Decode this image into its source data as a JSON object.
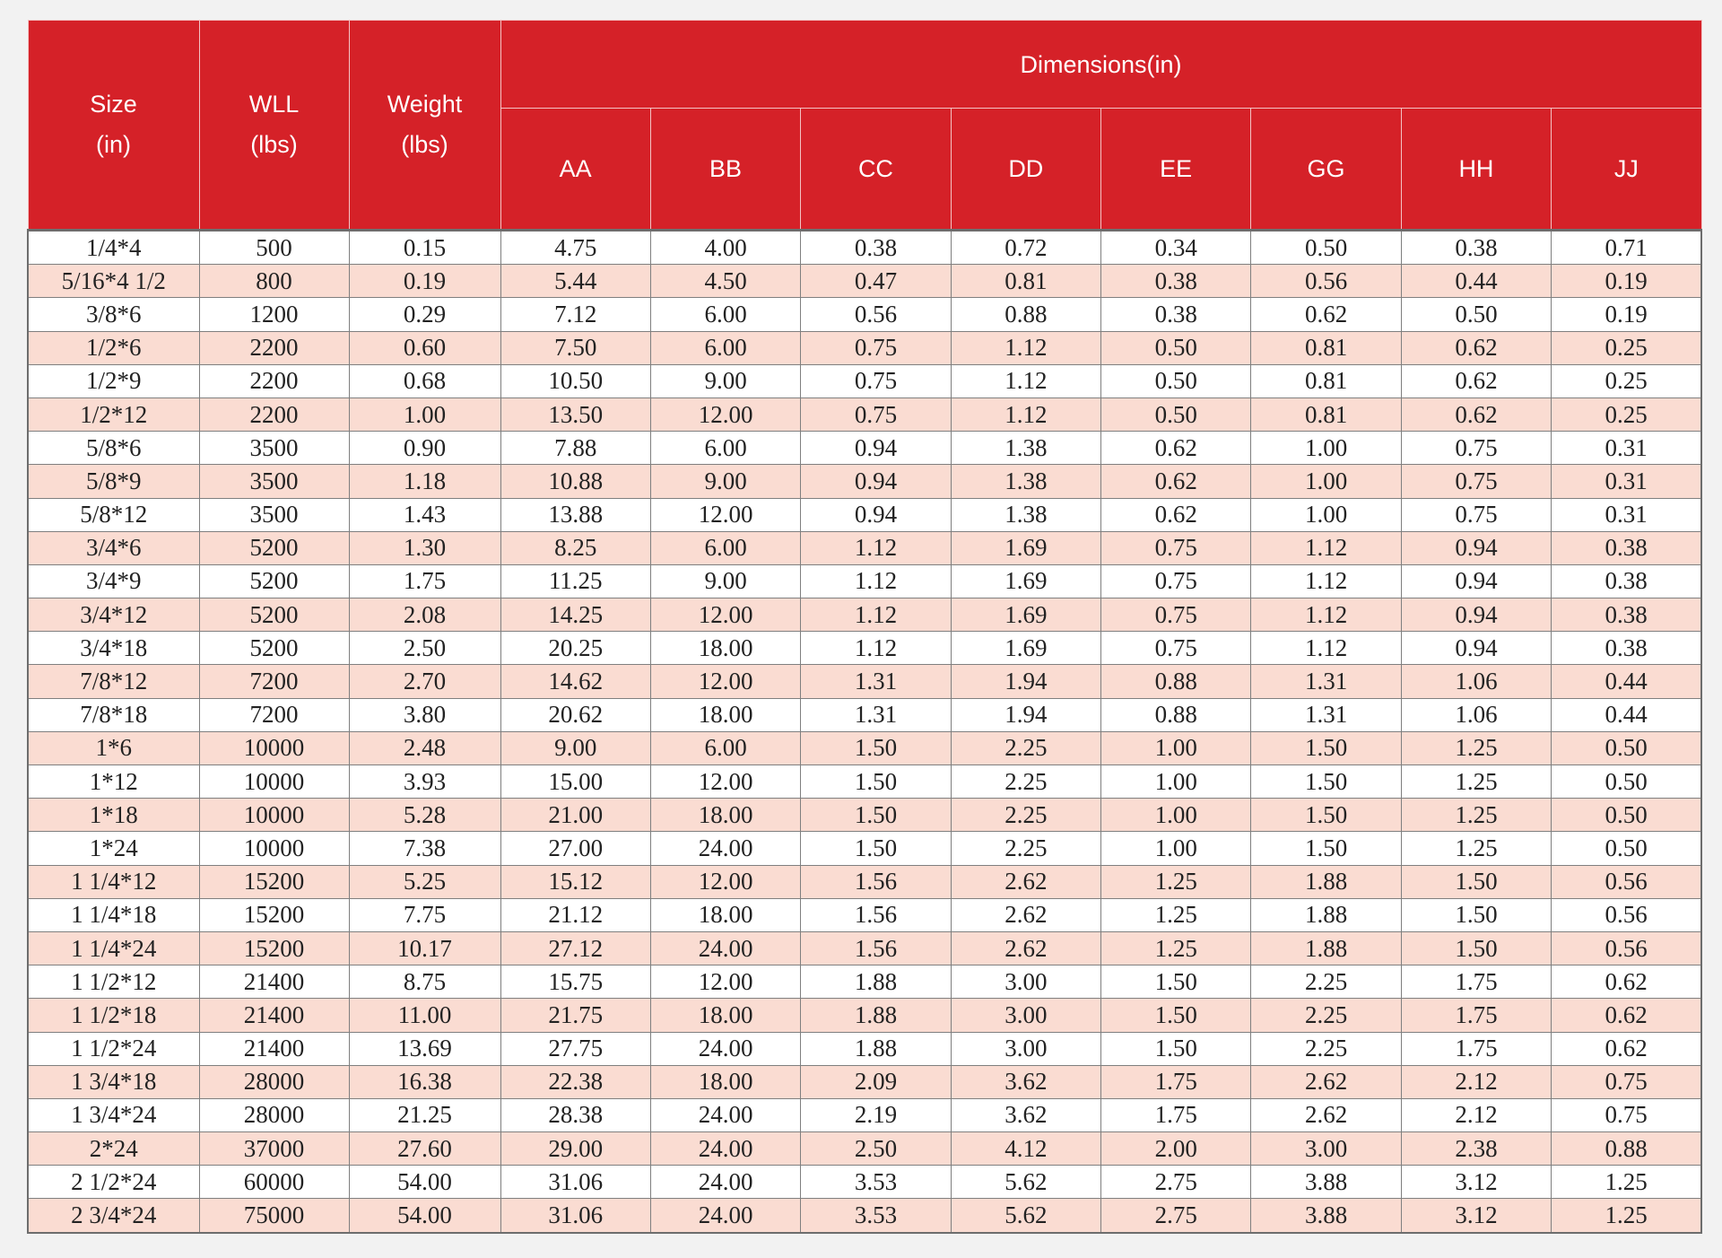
{
  "header": {
    "size": [
      "Size",
      "(in)"
    ],
    "wll": [
      "WLL",
      "(lbs)"
    ],
    "weight": [
      "Weight",
      "(lbs)"
    ],
    "dimensions": "Dimensions(in)",
    "dim_columns": [
      "AA",
      "BB",
      "CC",
      "DD",
      "EE",
      "GG",
      "HH",
      "JJ"
    ]
  },
  "colors": {
    "header_red": "#d52128",
    "stripe_pink": "#fadcd2",
    "row_white": "#ffffff"
  },
  "rows": [
    [
      "1/4*4",
      "500",
      "0.15",
      "4.75",
      "4.00",
      "0.38",
      "0.72",
      "0.34",
      "0.50",
      "0.38",
      "0.71"
    ],
    [
      "5/16*4 1/2",
      "800",
      "0.19",
      "5.44",
      "4.50",
      "0.47",
      "0.81",
      "0.38",
      "0.56",
      "0.44",
      "0.19"
    ],
    [
      "3/8*6",
      "1200",
      "0.29",
      "7.12",
      "6.00",
      "0.56",
      "0.88",
      "0.38",
      "0.62",
      "0.50",
      "0.19"
    ],
    [
      "1/2*6",
      "2200",
      "0.60",
      "7.50",
      "6.00",
      "0.75",
      "1.12",
      "0.50",
      "0.81",
      "0.62",
      "0.25"
    ],
    [
      "1/2*9",
      "2200",
      "0.68",
      "10.50",
      "9.00",
      "0.75",
      "1.12",
      "0.50",
      "0.81",
      "0.62",
      "0.25"
    ],
    [
      "1/2*12",
      "2200",
      "1.00",
      "13.50",
      "12.00",
      "0.75",
      "1.12",
      "0.50",
      "0.81",
      "0.62",
      "0.25"
    ],
    [
      "5/8*6",
      "3500",
      "0.90",
      "7.88",
      "6.00",
      "0.94",
      "1.38",
      "0.62",
      "1.00",
      "0.75",
      "0.31"
    ],
    [
      "5/8*9",
      "3500",
      "1.18",
      "10.88",
      "9.00",
      "0.94",
      "1.38",
      "0.62",
      "1.00",
      "0.75",
      "0.31"
    ],
    [
      "5/8*12",
      "3500",
      "1.43",
      "13.88",
      "12.00",
      "0.94",
      "1.38",
      "0.62",
      "1.00",
      "0.75",
      "0.31"
    ],
    [
      "3/4*6",
      "5200",
      "1.30",
      "8.25",
      "6.00",
      "1.12",
      "1.69",
      "0.75",
      "1.12",
      "0.94",
      "0.38"
    ],
    [
      "3/4*9",
      "5200",
      "1.75",
      "11.25",
      "9.00",
      "1.12",
      "1.69",
      "0.75",
      "1.12",
      "0.94",
      "0.38"
    ],
    [
      "3/4*12",
      "5200",
      "2.08",
      "14.25",
      "12.00",
      "1.12",
      "1.69",
      "0.75",
      "1.12",
      "0.94",
      "0.38"
    ],
    [
      "3/4*18",
      "5200",
      "2.50",
      "20.25",
      "18.00",
      "1.12",
      "1.69",
      "0.75",
      "1.12",
      "0.94",
      "0.38"
    ],
    [
      "7/8*12",
      "7200",
      "2.70",
      "14.62",
      "12.00",
      "1.31",
      "1.94",
      "0.88",
      "1.31",
      "1.06",
      "0.44"
    ],
    [
      "7/8*18",
      "7200",
      "3.80",
      "20.62",
      "18.00",
      "1.31",
      "1.94",
      "0.88",
      "1.31",
      "1.06",
      "0.44"
    ],
    [
      "1*6",
      "10000",
      "2.48",
      "9.00",
      "6.00",
      "1.50",
      "2.25",
      "1.00",
      "1.50",
      "1.25",
      "0.50"
    ],
    [
      "1*12",
      "10000",
      "3.93",
      "15.00",
      "12.00",
      "1.50",
      "2.25",
      "1.00",
      "1.50",
      "1.25",
      "0.50"
    ],
    [
      "1*18",
      "10000",
      "5.28",
      "21.00",
      "18.00",
      "1.50",
      "2.25",
      "1.00",
      "1.50",
      "1.25",
      "0.50"
    ],
    [
      "1*24",
      "10000",
      "7.38",
      "27.00",
      "24.00",
      "1.50",
      "2.25",
      "1.00",
      "1.50",
      "1.25",
      "0.50"
    ],
    [
      "1 1/4*12",
      "15200",
      "5.25",
      "15.12",
      "12.00",
      "1.56",
      "2.62",
      "1.25",
      "1.88",
      "1.50",
      "0.56"
    ],
    [
      "1 1/4*18",
      "15200",
      "7.75",
      "21.12",
      "18.00",
      "1.56",
      "2.62",
      "1.25",
      "1.88",
      "1.50",
      "0.56"
    ],
    [
      "1 1/4*24",
      "15200",
      "10.17",
      "27.12",
      "24.00",
      "1.56",
      "2.62",
      "1.25",
      "1.88",
      "1.50",
      "0.56"
    ],
    [
      "1 1/2*12",
      "21400",
      "8.75",
      "15.75",
      "12.00",
      "1.88",
      "3.00",
      "1.50",
      "2.25",
      "1.75",
      "0.62"
    ],
    [
      "1 1/2*18",
      "21400",
      "11.00",
      "21.75",
      "18.00",
      "1.88",
      "3.00",
      "1.50",
      "2.25",
      "1.75",
      "0.62"
    ],
    [
      "1 1/2*24",
      "21400",
      "13.69",
      "27.75",
      "24.00",
      "1.88",
      "3.00",
      "1.50",
      "2.25",
      "1.75",
      "0.62"
    ],
    [
      "1 3/4*18",
      "28000",
      "16.38",
      "22.38",
      "18.00",
      "2.09",
      "3.62",
      "1.75",
      "2.62",
      "2.12",
      "0.75"
    ],
    [
      "1 3/4*24",
      "28000",
      "21.25",
      "28.38",
      "24.00",
      "2.19",
      "3.62",
      "1.75",
      "2.62",
      "2.12",
      "0.75"
    ],
    [
      "2*24",
      "37000",
      "27.60",
      "29.00",
      "24.00",
      "2.50",
      "4.12",
      "2.00",
      "3.00",
      "2.38",
      "0.88"
    ],
    [
      "2 1/2*24",
      "60000",
      "54.00",
      "31.06",
      "24.00",
      "3.53",
      "5.62",
      "2.75",
      "3.88",
      "3.12",
      "1.25"
    ],
    [
      "2 3/4*24",
      "75000",
      "54.00",
      "31.06",
      "24.00",
      "3.53",
      "5.62",
      "2.75",
      "3.88",
      "3.12",
      "1.25"
    ]
  ]
}
